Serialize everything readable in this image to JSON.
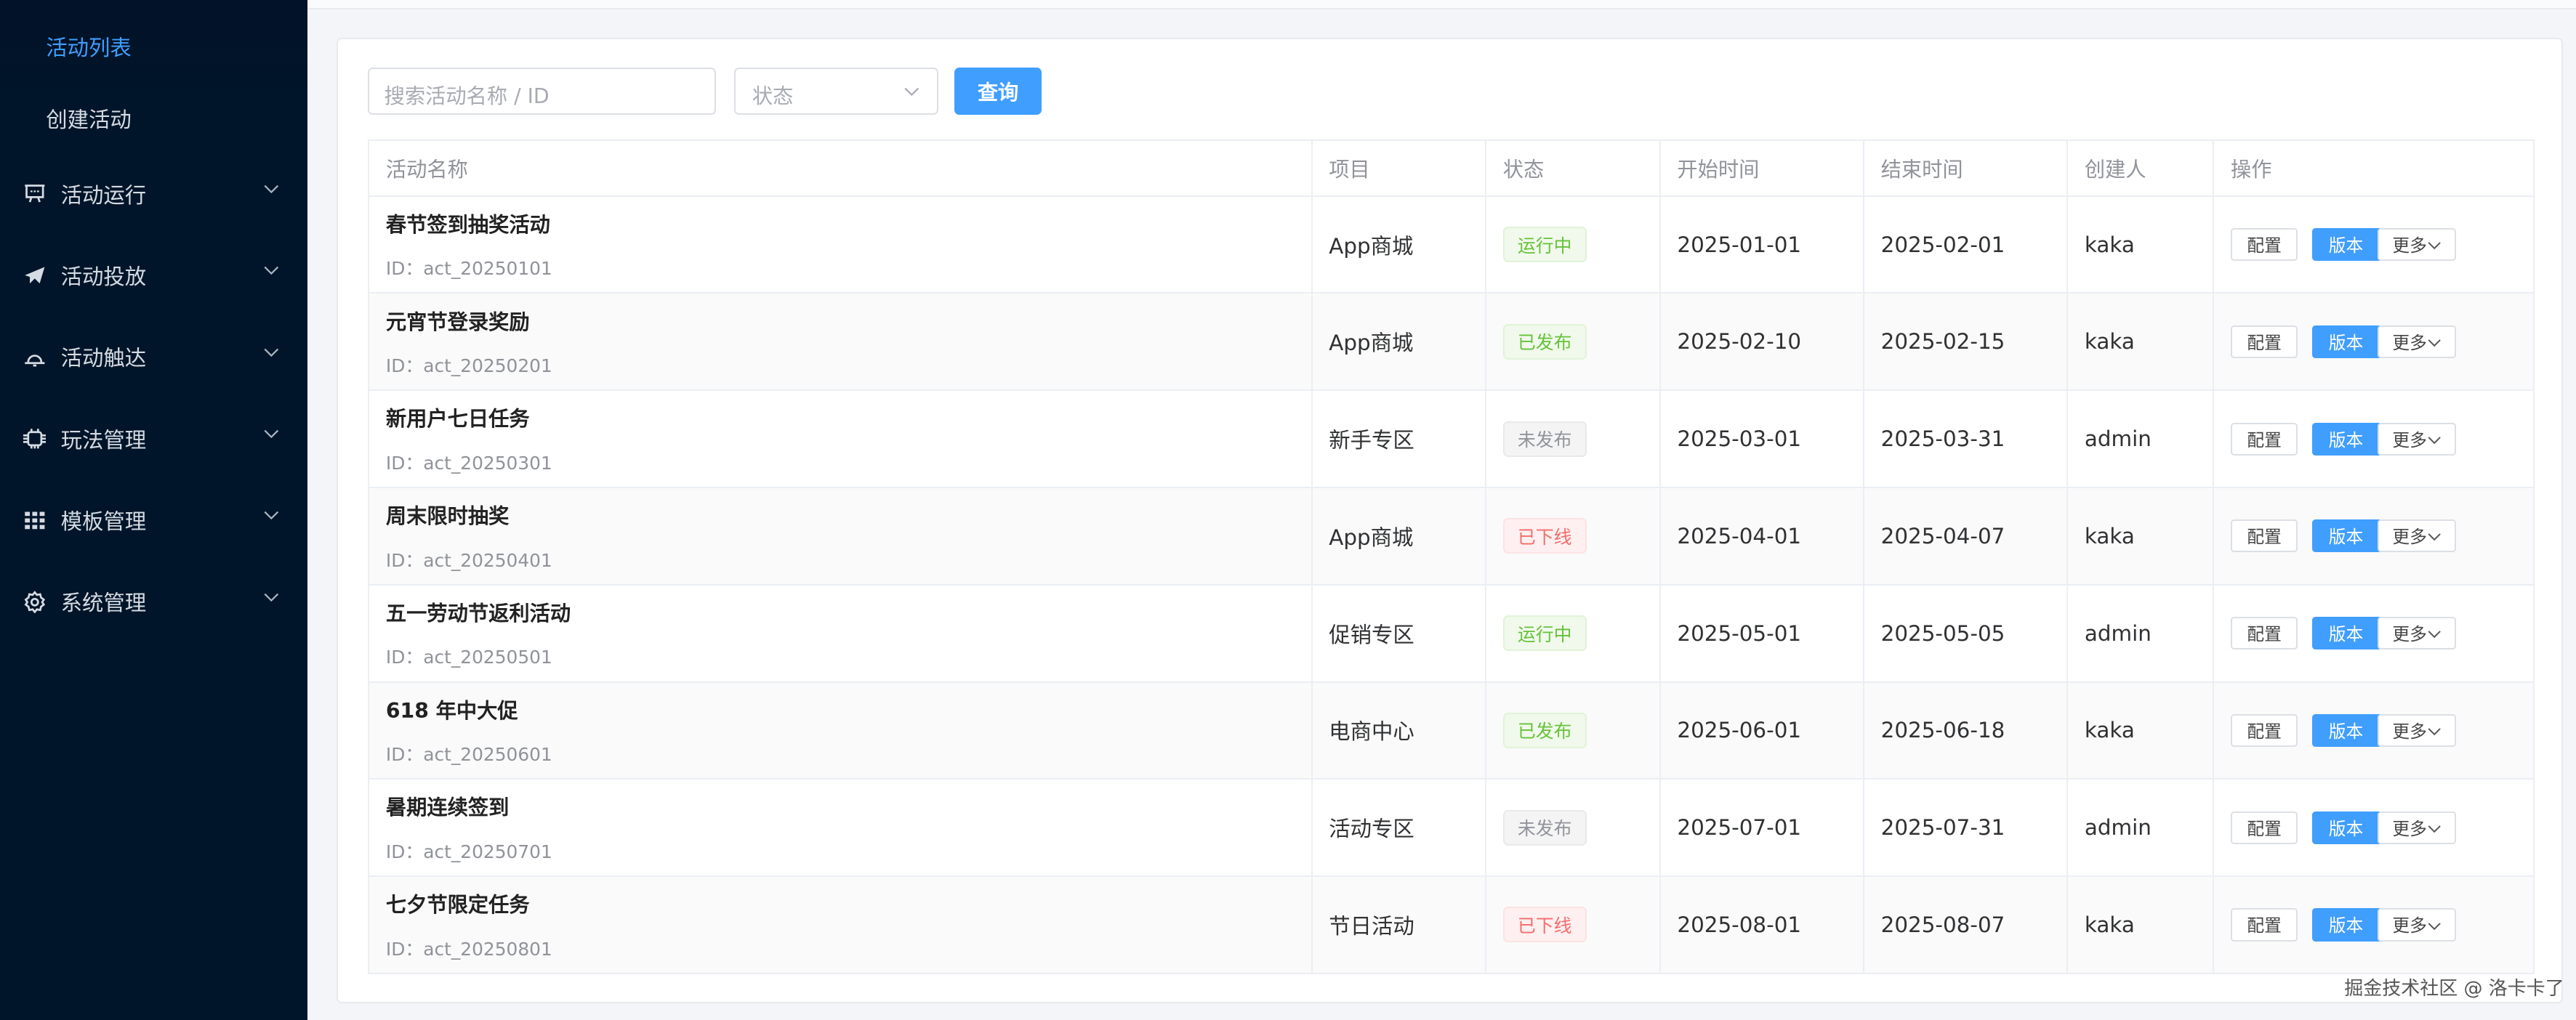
{
  "sidebar": {
    "submenu": [
      {
        "label": "活动列表",
        "active": true
      },
      {
        "label": "创建活动",
        "active": false
      }
    ],
    "items": [
      {
        "label": "活动运行",
        "icon": "presentation-board-icon"
      },
      {
        "label": "活动投放",
        "icon": "paper-plane-icon"
      },
      {
        "label": "活动触达",
        "icon": "bell-icon"
      },
      {
        "label": "玩法管理",
        "icon": "chip-icon"
      },
      {
        "label": "模板管理",
        "icon": "grid-icon"
      },
      {
        "label": "系统管理",
        "icon": "gear-icon"
      }
    ]
  },
  "filters": {
    "search_placeholder": "搜索活动名称 / ID",
    "status_placeholder": "状态",
    "query_label": "查询"
  },
  "table": {
    "columns": [
      "活动名称",
      "项目",
      "状态",
      "开始时间",
      "结束时间",
      "创建人",
      "操作"
    ],
    "actions": {
      "config": "配置",
      "version": "版本",
      "more": "更多"
    },
    "rows": [
      {
        "name": "春节签到抽奖活动",
        "id": "ID：act_20250101",
        "project": "App商城",
        "status": "运行中",
        "start": "2025-01-01",
        "end": "2025-02-01",
        "creator": "kaka"
      },
      {
        "name": "元宵节登录奖励",
        "id": "ID：act_20250201",
        "project": "App商城",
        "status": "已发布",
        "start": "2025-02-10",
        "end": "2025-02-15",
        "creator": "kaka"
      },
      {
        "name": "新用户七日任务",
        "id": "ID：act_20250301",
        "project": "新手专区",
        "status": "未发布",
        "start": "2025-03-01",
        "end": "2025-03-31",
        "creator": "admin"
      },
      {
        "name": "周末限时抽奖",
        "id": "ID：act_20250401",
        "project": "App商城",
        "status": "已下线",
        "start": "2025-04-01",
        "end": "2025-04-07",
        "creator": "kaka"
      },
      {
        "name": "五一劳动节返利活动",
        "id": "ID：act_20250501",
        "project": "促销专区",
        "status": "运行中",
        "start": "2025-05-01",
        "end": "2025-05-05",
        "creator": "admin"
      },
      {
        "name": "618 年中大促",
        "id": "ID：act_20250601",
        "project": "电商中心",
        "status": "已发布",
        "start": "2025-06-01",
        "end": "2025-06-18",
        "creator": "kaka"
      },
      {
        "name": "暑期连续签到",
        "id": "ID：act_20250701",
        "project": "活动专区",
        "status": "未发布",
        "start": "2025-07-01",
        "end": "2025-07-31",
        "creator": "admin"
      },
      {
        "name": "七夕节限定任务",
        "id": "ID：act_20250801",
        "project": "节日活动",
        "status": "已下线",
        "start": "2025-08-01",
        "end": "2025-08-07",
        "creator": "kaka"
      }
    ]
  },
  "status_colors": {
    "运行中": {
      "fg": "#67c23a",
      "bg": "#f0f9eb",
      "border": "#e1f3d8"
    },
    "已发布": {
      "fg": "#67c23a",
      "bg": "#f0f9eb",
      "border": "#e1f3d8"
    },
    "未发布": {
      "fg": "#909399",
      "bg": "#f4f4f5",
      "border": "#e9e9eb"
    },
    "已下线": {
      "fg": "#f56c6c",
      "bg": "#fef0f0",
      "border": "#fde2e2"
    }
  },
  "colors": {
    "accent": "#409eff",
    "sidebar_bg": "#001529"
  },
  "watermark": "掘金技术社区 @ 洛卡卡了"
}
